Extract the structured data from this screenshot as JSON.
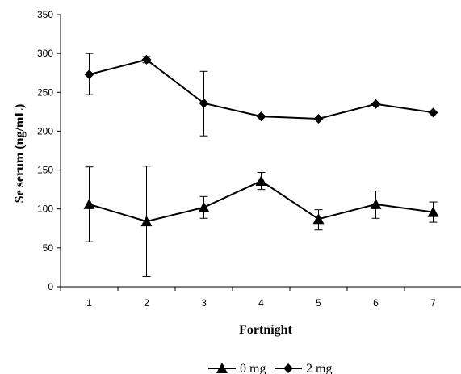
{
  "chart_data": {
    "type": "line",
    "title": "",
    "xlabel": "Fortnight",
    "ylabel": "Se serum (ng/mL)",
    "x": [
      1,
      2,
      3,
      4,
      5,
      6,
      7
    ],
    "ylim": [
      0,
      350
    ],
    "yticks": [
      0,
      50,
      100,
      150,
      200,
      250,
      300,
      350
    ],
    "grid": false,
    "legend_position": "bottom",
    "series": [
      {
        "name": "0 mg",
        "marker": "triangle",
        "values": [
          106,
          84,
          102,
          136,
          87,
          106,
          96
        ],
        "err_low": [
          58,
          13,
          88,
          125,
          73,
          88,
          83
        ],
        "err_high": [
          154,
          155,
          116,
          147,
          99,
          123,
          109
        ]
      },
      {
        "name": "2 mg",
        "marker": "diamond",
        "values": [
          273,
          292,
          236,
          219,
          216,
          235,
          224
        ],
        "err_low": [
          247,
          288,
          194,
          219,
          216,
          235,
          224
        ],
        "err_high": [
          300,
          296,
          277,
          219,
          216,
          235,
          224
        ]
      }
    ]
  }
}
